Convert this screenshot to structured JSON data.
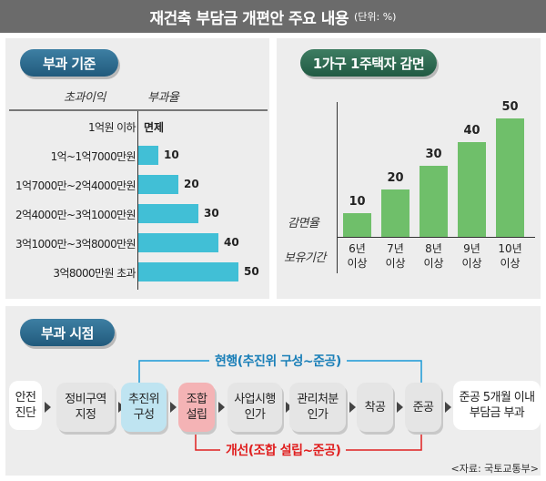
{
  "title": "재건축 부담금 개편안 주요 내용",
  "unit": "(단위: %)",
  "levy_standard": {
    "pill": "부과 기준",
    "col_profit": "초과이익",
    "col_rate": "부과율"
  },
  "reduction": {
    "pill": "1가구 1주택자 감면",
    "ylabel": "감면율",
    "xlabel": "보유기간"
  },
  "timing": {
    "pill": "부과 시점",
    "current_label": "현행(추진위 구성~준공)",
    "revised_label": "개선(조합 설립~준공)",
    "steps": [
      "안전\n진단",
      "정비구역\n지정",
      "추진위\n구성",
      "조합\n설립",
      "사업시행\n인가",
      "관리처분\n인가",
      "착공",
      "준공",
      "준공 5개월 이내\n부담금 부과"
    ],
    "source": "<자료: 국토교통부>"
  },
  "chart_data": [
    {
      "type": "bar",
      "orientation": "horizontal",
      "title": "부과 기준",
      "xlabel": "부과율",
      "ylabel": "초과이익",
      "categories": [
        "1억원 이하",
        "1억~1억7000만원",
        "1억7000만~2억4000만원",
        "2억4000만~3억1000만원",
        "3억1000만~3억8000만원",
        "3억8000만원 초과"
      ],
      "values": [
        0,
        10,
        20,
        30,
        40,
        50
      ],
      "value_labels": [
        "면제",
        "10",
        "20",
        "30",
        "40",
        "50"
      ],
      "xlim": [
        0,
        50
      ]
    },
    {
      "type": "bar",
      "title": "1가구 1주택자 감면",
      "xlabel": "보유기간",
      "ylabel": "감면율",
      "categories": [
        "6년\n이상",
        "7년\n이상",
        "8년\n이상",
        "9년\n이상",
        "10년\n이상"
      ],
      "values": [
        10,
        20,
        30,
        40,
        50
      ],
      "ylim": [
        0,
        50
      ]
    }
  ],
  "colors": {
    "title_bg": "#6b6b6b",
    "panel_bg": "#ededed",
    "hbar": "#41bfd6",
    "vbar": "#6fbf6a",
    "current_line": "#1a9ad6",
    "revised_line": "#e02020"
  }
}
